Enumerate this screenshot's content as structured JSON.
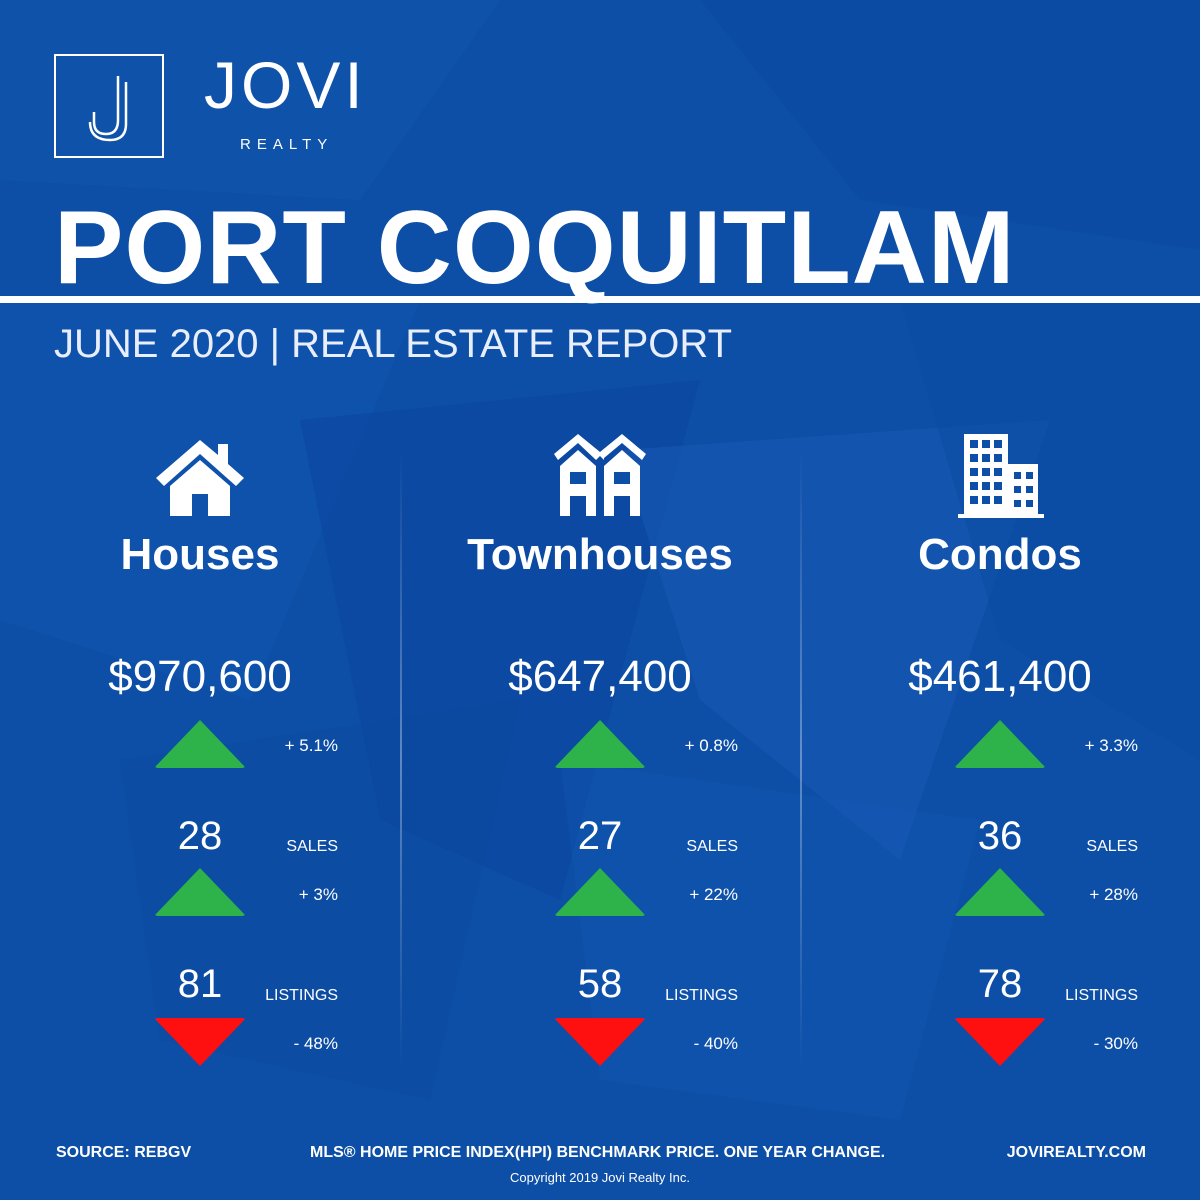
{
  "brand": {
    "name": "JOVI",
    "sub": "REALTY",
    "logo_letter": "J"
  },
  "title": "PORT COQUITLAM",
  "subtitle": "JUNE 2020 | REAL ESTATE REPORT",
  "colors": {
    "background": "#0d4fa6",
    "up": "#2db34a",
    "down": "#ff1010",
    "text": "#ffffff"
  },
  "columns": [
    {
      "icon": "house-icon",
      "name": "Houses",
      "price": "$970,600",
      "price_change": "+ 5.1%",
      "price_dir": "up",
      "sales": "28",
      "sales_label": "SALES",
      "sales_change": "+ 3%",
      "sales_dir": "up",
      "listings": "81",
      "listings_label": "LISTINGS",
      "listings_change": "- 48%",
      "listings_dir": "down"
    },
    {
      "icon": "townhouse-icon",
      "name": "Townhouses",
      "price": "$647,400",
      "price_change": "+ 0.8%",
      "price_dir": "up",
      "sales": "27",
      "sales_label": "SALES",
      "sales_change": "+ 22%",
      "sales_dir": "up",
      "listings": "58",
      "listings_label": "LISTINGS",
      "listings_change": "- 40%",
      "listings_dir": "down"
    },
    {
      "icon": "condo-building-icon",
      "name": "Condos",
      "price": "$461,400",
      "price_change": "+ 3.3%",
      "price_dir": "up",
      "sales": "36",
      "sales_label": "SALES",
      "sales_change": "+ 28%",
      "sales_dir": "up",
      "listings": "78",
      "listings_label": "LISTINGS",
      "listings_change": "- 30%",
      "listings_dir": "down"
    }
  ],
  "footer": {
    "source": "SOURCE:  REBGV",
    "note": "MLS® HOME PRICE INDEX(HPI) BENCHMARK PRICE. ONE YEAR CHANGE.",
    "website": "JOVIREALTY.COM",
    "copyright": "Copyright 2019 Jovi Realty Inc."
  }
}
